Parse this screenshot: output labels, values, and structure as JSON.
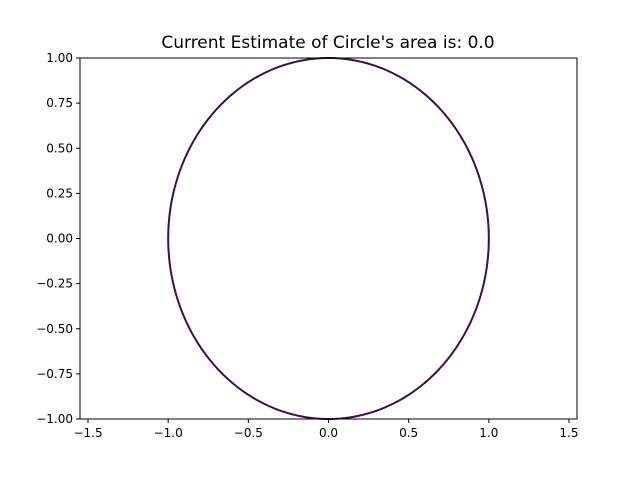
{
  "chart_data": {
    "type": "line",
    "title": "Current Estimate of Circle's area is: 0.0",
    "xlabel": "",
    "ylabel": "",
    "xlim": [
      -1.55,
      1.55
    ],
    "ylim": [
      -1.0,
      1.0
    ],
    "x_ticks": [
      -1.5,
      -1.0,
      -0.5,
      0.0,
      0.5,
      1.0,
      1.5
    ],
    "x_tick_labels": [
      "−1.5",
      "−1.0",
      "−0.5",
      "0.0",
      "0.5",
      "1.0",
      "1.5"
    ],
    "y_ticks": [
      1.0,
      0.75,
      0.5,
      0.25,
      0.0,
      -0.25,
      -0.5,
      -0.75,
      -1.0
    ],
    "y_tick_labels": [
      "1.00",
      "0.75",
      "0.50",
      "0.25",
      "0.00",
      "−0.25",
      "−0.50",
      "−0.75",
      "−1.00"
    ],
    "grid": false,
    "series": [
      {
        "shape": "circle",
        "center": [
          0,
          0
        ],
        "radius": 1.0,
        "color": "#3b0f4f"
      }
    ]
  }
}
